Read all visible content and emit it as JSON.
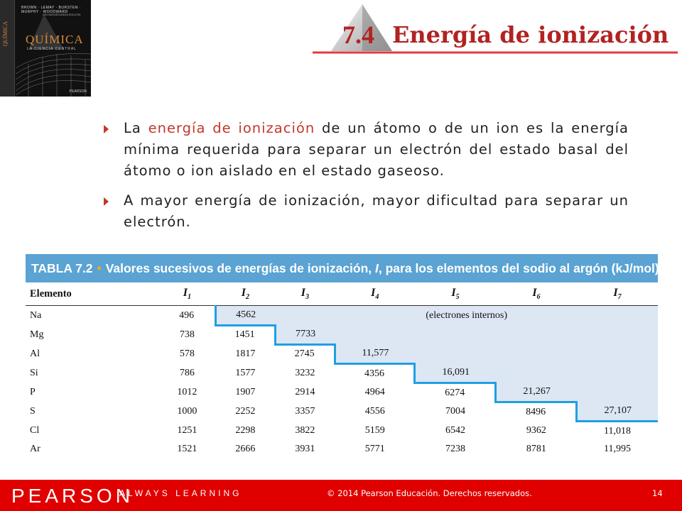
{
  "cover": {
    "authors": "BROWN · LEMAY · BURSTEN · MURPHY · WOODWARD",
    "edition": "DECIMOSEGUNDA EDICIÓN",
    "title": "QUÍMICA",
    "subtitle": "LA CIENCIA CENTRAL",
    "spine": "QUÍMICA",
    "publisher": "PEARSON"
  },
  "heading": {
    "number": "7.4",
    "title": "Energía de ionización",
    "accent": "#b22222"
  },
  "bullets": [
    {
      "pre": "La ",
      "highlight": "energía de ionización",
      "post": " de un átomo o de un ion es la energía mínima requerida para separar un electrón del estado basal del átomo o ion aislado en el estado gaseoso."
    },
    {
      "pre": "A mayor energía de ionización, mayor dificultad para separar un electrón.",
      "highlight": "",
      "post": ""
    }
  ],
  "table": {
    "label": "TABLA 7.2",
    "caption": "Valores sucesivos de energías de ionización, ",
    "caption_sym": "I",
    "caption_end": ", para los elementos del sodio al argón (kJ/mol)",
    "header_first": "Elemento",
    "columns": [
      "1",
      "2",
      "3",
      "4",
      "5",
      "6",
      "7"
    ],
    "column_symbol": "I",
    "note": "(electrones internos)",
    "rows": [
      {
        "el": "Na",
        "v": [
          "496",
          "4562",
          "",
          "",
          "",
          "",
          ""
        ]
      },
      {
        "el": "Mg",
        "v": [
          "738",
          "1451",
          "7733",
          "",
          "",
          "",
          ""
        ]
      },
      {
        "el": "Al",
        "v": [
          "578",
          "1817",
          "2745",
          "11,577",
          "",
          "",
          ""
        ]
      },
      {
        "el": "Si",
        "v": [
          "786",
          "1577",
          "3232",
          "4356",
          "16,091",
          "",
          ""
        ]
      },
      {
        "el": "P",
        "v": [
          "1012",
          "1907",
          "2914",
          "4964",
          "6274",
          "21,267",
          ""
        ]
      },
      {
        "el": "S",
        "v": [
          "1000",
          "2252",
          "3357",
          "4556",
          "7004",
          "8496",
          "27,107"
        ]
      },
      {
        "el": "Cl",
        "v": [
          "1251",
          "2298",
          "3822",
          "5159",
          "6542",
          "9362",
          "11,018"
        ]
      },
      {
        "el": "Ar",
        "v": [
          "1521",
          "2666",
          "3931",
          "5771",
          "7238",
          "8781",
          "11,995"
        ]
      }
    ],
    "header_color": "#5aa3d3",
    "shade_color": "#dde6f3",
    "step_color": "#1f9fe3"
  },
  "footer": {
    "brand": "PEARSON",
    "tagline": "ALWAYS LEARNING",
    "copyright": "© 2014 Pearson Educación. Derechos reservados.",
    "page": "14",
    "color": "#e00000"
  }
}
